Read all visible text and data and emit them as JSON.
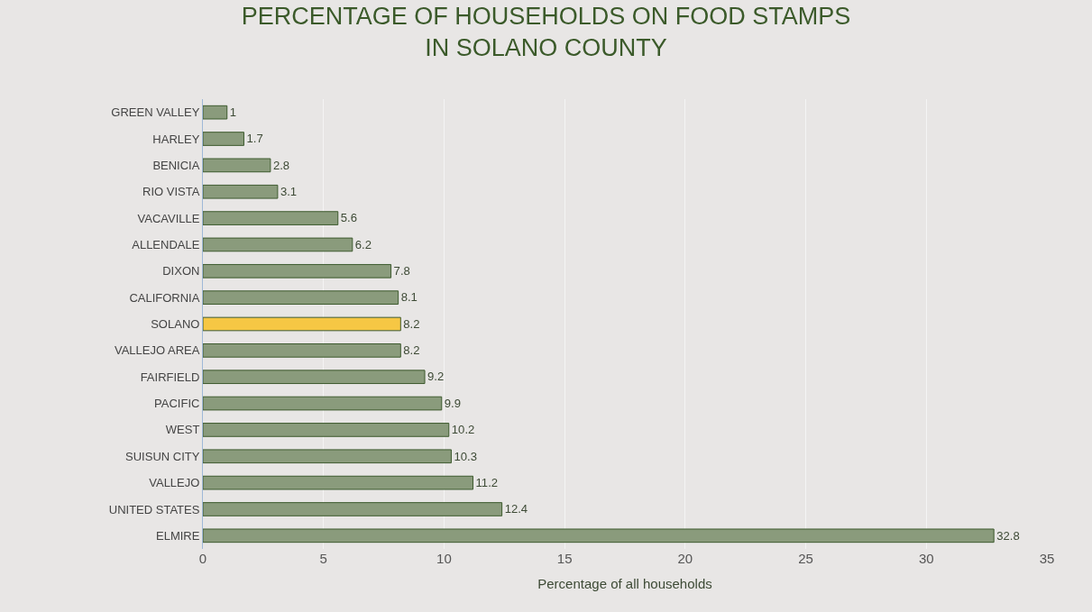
{
  "chart_data": {
    "type": "bar",
    "orientation": "horizontal",
    "title": "PERCENTAGE OF HOUSEHOLDS ON FOOD STAMPS\nIN SOLANO COUNTY",
    "xlabel": "Percentage of all households",
    "categories": [
      "GREEN VALLEY",
      "HARLEY",
      "BENICIA",
      "RIO VISTA",
      "VACAVILLE",
      "ALLENDALE",
      "DIXON",
      "CALIFORNIA",
      "SOLANO",
      "VALLEJO AREA",
      "FAIRFIELD",
      "PACIFIC",
      "WEST",
      "SUISUN CITY",
      "VALLEJO",
      "UNITED STATES",
      "ELMIRE"
    ],
    "values": [
      1,
      1.7,
      2.8,
      3.1,
      5.6,
      6.2,
      7.8,
      8.1,
      8.2,
      8.2,
      9.2,
      9.9,
      10.2,
      10.3,
      11.2,
      12.4,
      32.8
    ],
    "colors": [
      "#8a9b7c",
      "#8a9b7c",
      "#8a9b7c",
      "#8a9b7c",
      "#8a9b7c",
      "#8a9b7c",
      "#8a9b7c",
      "#8a9b7c",
      "#f6c744",
      "#8a9b7c",
      "#8a9b7c",
      "#8a9b7c",
      "#8a9b7c",
      "#8a9b7c",
      "#8a9b7c",
      "#8a9b7c",
      "#8a9b7c"
    ],
    "xlim": [
      0,
      35
    ],
    "xticks": [
      0,
      5,
      10,
      15,
      20,
      25,
      30,
      35
    ],
    "data_labels": true,
    "grid": "x",
    "legend": false
  }
}
